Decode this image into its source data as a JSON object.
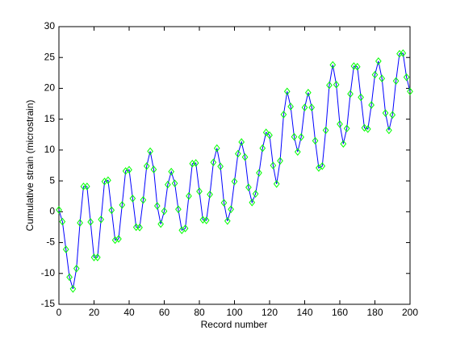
{
  "chart_data": {
    "type": "line",
    "xlabel": "Record number",
    "ylabel": "Cumulative strain (microstrain)",
    "x": [
      0,
      2,
      4,
      6,
      8,
      10,
      12,
      14,
      16,
      18,
      20,
      22,
      24,
      26,
      28,
      30,
      32,
      34,
      36,
      38,
      40,
      42,
      44,
      46,
      48,
      50,
      52,
      54,
      56,
      58,
      60,
      62,
      64,
      66,
      68,
      70,
      72,
      74,
      76,
      78,
      80,
      82,
      84,
      86,
      88,
      90,
      92,
      94,
      96,
      98,
      100,
      102,
      104,
      106,
      108,
      110,
      112,
      114,
      116,
      118,
      120,
      122,
      124,
      126,
      128,
      130,
      132,
      134,
      136,
      138,
      140,
      142,
      144,
      146,
      148,
      150,
      152,
      154,
      156,
      158,
      160,
      162,
      164,
      166,
      168,
      170,
      172,
      174,
      176,
      178,
      180,
      182,
      184,
      186,
      188,
      190,
      192,
      194,
      196,
      198,
      200
    ],
    "series": [
      {
        "color": "#0000ff",
        "marker": "diamond",
        "marker_color": "#00ff00",
        "values": [
          0.3,
          -1.6,
          -6.1,
          -10.6,
          -12.5,
          -9.2,
          -1.8,
          4.1,
          4.1,
          -1.65,
          -7.4,
          -7.4,
          -1.25,
          4.9,
          5.1,
          0.25,
          -4.6,
          -4.4,
          1.1,
          6.6,
          6.8,
          2.15,
          -2.5,
          -2.55,
          1.9,
          7.4,
          9.8,
          6.85,
          0.95,
          -2,
          0.1,
          4.4,
          6.5,
          4.6,
          0.4,
          -3.0,
          -2.7,
          2.55,
          7.8,
          7.9,
          3.3,
          -1.3,
          -1.4,
          2.8,
          8.0,
          10.3,
          7.35,
          1.45,
          -1.5,
          0.4,
          4.9,
          9.4,
          11.3,
          8.85,
          3.95,
          1.5,
          2.9,
          6.3,
          10.3,
          12.85,
          12.4,
          7.5,
          4.5,
          8.25,
          15.75,
          19.5,
          17.05,
          12.15,
          9.7,
          12.1,
          16.9,
          19.3,
          16.9,
          11.5,
          7.1,
          7.4,
          13.2,
          20.5,
          23.8,
          20.6,
          14.2,
          11,
          13.5,
          19.1,
          23.6,
          23.5,
          18.55,
          13.6,
          13.4,
          17.3,
          22.2,
          24.4,
          21.6,
          16.0,
          13.2,
          15.7,
          21.2,
          25.6,
          25.7,
          21.8,
          19.5
        ]
      }
    ],
    "xlim": [
      0,
      200
    ],
    "xticks": [
      0,
      20,
      40,
      60,
      80,
      100,
      120,
      140,
      160,
      180,
      200
    ],
    "ylim": [
      -15,
      30
    ],
    "yticks": [
      -15,
      -10,
      -5,
      0,
      5,
      10,
      15,
      20,
      25,
      30
    ]
  }
}
